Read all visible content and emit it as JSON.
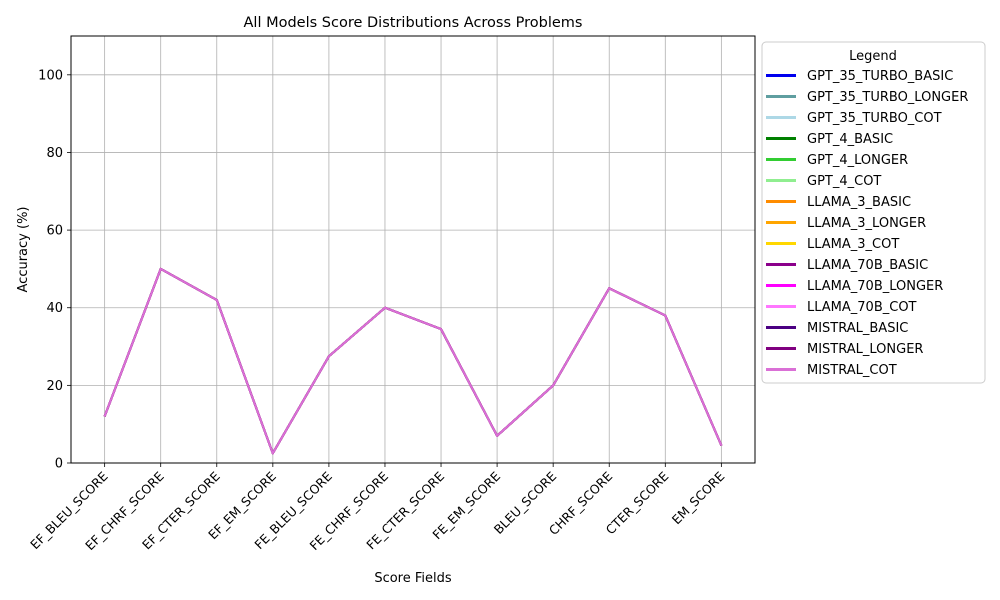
{
  "chart_data": {
    "type": "line",
    "title": "All Models Score Distributions Across Problems",
    "xlabel": "Score Fields",
    "ylabel": "Accuracy (%)",
    "ylim": [
      0,
      110
    ],
    "yticks": [
      0,
      20,
      40,
      60,
      80,
      100
    ],
    "grid": true,
    "legend_title": "Legend",
    "legend_position": "outside-right",
    "categories": [
      "EF_BLEU_SCORE",
      "EF_CHRF_SCORE",
      "EF_CTER_SCORE",
      "EF_EM_SCORE",
      "FE_BLEU_SCORE",
      "FE_CHRF_SCORE",
      "FE_CTER_SCORE",
      "FE_EM_SCORE",
      "BLEU_SCORE",
      "CHRF_SCORE",
      "CTER_SCORE",
      "EM_SCORE"
    ],
    "series": [
      {
        "name": "GPT_35_TURBO_BASIC",
        "color": "#0000ee",
        "values": [
          12,
          50,
          42,
          2.5,
          27.5,
          40,
          34.5,
          7,
          20,
          45,
          38,
          4.5
        ]
      },
      {
        "name": "GPT_35_TURBO_LONGER",
        "color": "#5f9ea0",
        "values": [
          12,
          50,
          42,
          2.5,
          27.5,
          40,
          34.5,
          7,
          20,
          45,
          38,
          4.5
        ]
      },
      {
        "name": "GPT_35_TURBO_COT",
        "color": "#add8e6",
        "values": [
          12,
          50,
          42,
          2.5,
          27.5,
          40,
          34.5,
          7,
          20,
          45,
          38,
          4.5
        ]
      },
      {
        "name": "GPT_4_BASIC",
        "color": "#008000",
        "values": [
          12,
          50,
          42,
          2.5,
          27.5,
          40,
          34.5,
          7,
          20,
          45,
          38,
          4.5
        ]
      },
      {
        "name": "GPT_4_LONGER",
        "color": "#32cd32",
        "values": [
          12,
          50,
          42,
          2.5,
          27.5,
          40,
          34.5,
          7,
          20,
          45,
          38,
          4.5
        ]
      },
      {
        "name": "GPT_4_COT",
        "color": "#90ee90",
        "values": [
          12,
          50,
          42,
          2.5,
          27.5,
          40,
          34.5,
          7,
          20,
          45,
          38,
          4.5
        ]
      },
      {
        "name": "LLAMA_3_BASIC",
        "color": "#ff8c00",
        "values": [
          12,
          50,
          42,
          2.5,
          27.5,
          40,
          34.5,
          7,
          20,
          45,
          38,
          4.5
        ]
      },
      {
        "name": "LLAMA_3_LONGER",
        "color": "#ffa500",
        "values": [
          12,
          50,
          42,
          2.5,
          27.5,
          40,
          34.5,
          7,
          20,
          45,
          38,
          4.5
        ]
      },
      {
        "name": "LLAMA_3_COT",
        "color": "#ffd700",
        "values": [
          12,
          50,
          42,
          2.5,
          27.5,
          40,
          34.5,
          7,
          20,
          45,
          38,
          4.5
        ]
      },
      {
        "name": "LLAMA_70B_BASIC",
        "color": "#8b008b",
        "values": [
          12,
          50,
          42,
          2.5,
          27.5,
          40,
          34.5,
          7,
          20,
          45,
          38,
          4.5
        ]
      },
      {
        "name": "LLAMA_70B_LONGER",
        "color": "#ff00ff",
        "values": [
          12,
          50,
          42,
          2.5,
          27.5,
          40,
          34.5,
          7,
          20,
          45,
          38,
          4.5
        ]
      },
      {
        "name": "LLAMA_70B_COT",
        "color": "#ff77ff",
        "values": [
          12,
          50,
          42,
          2.5,
          27.5,
          40,
          34.5,
          7,
          20,
          45,
          38,
          4.5
        ]
      },
      {
        "name": "MISTRAL_BASIC",
        "color": "#4b0082",
        "values": [
          12,
          50,
          42,
          2.5,
          27.5,
          40,
          34.5,
          7,
          20,
          45,
          38,
          4.5
        ]
      },
      {
        "name": "MISTRAL_LONGER",
        "color": "#800080",
        "values": [
          12,
          50,
          42,
          2.5,
          27.5,
          40,
          34.5,
          7,
          20,
          45,
          38,
          4.5
        ]
      },
      {
        "name": "MISTRAL_COT",
        "color": "#da70d6",
        "values": [
          12,
          50,
          42,
          2.5,
          27.5,
          40,
          34.5,
          7,
          20,
          45,
          38,
          4.5
        ]
      }
    ]
  }
}
